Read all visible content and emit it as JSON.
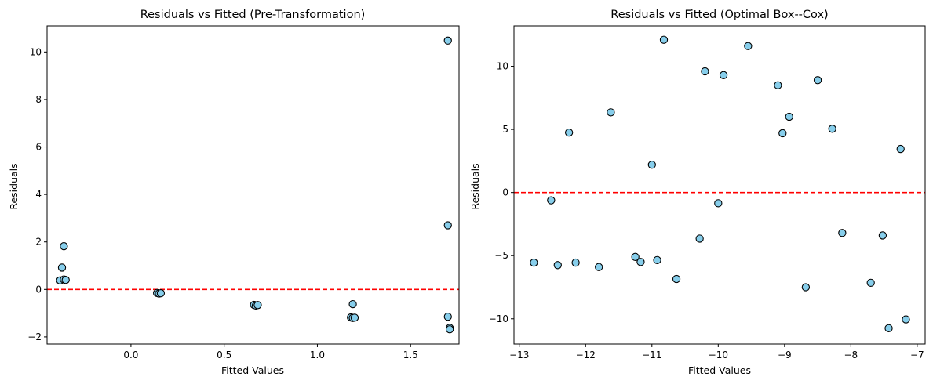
{
  "colors": {
    "point_fill": "#87ceeb",
    "point_edge": "#000000",
    "ref_line": "#ff0000"
  },
  "chart_data": [
    {
      "type": "scatter",
      "title": "Residuals vs Fitted (Pre-Transformation)",
      "xlabel": "Fitted Values",
      "ylabel": "Residuals",
      "xlim": [
        -0.45,
        1.76
      ],
      "ylim": [
        -2.3,
        11.1
      ],
      "xticks": [
        0.0,
        0.5,
        1.0,
        1.5
      ],
      "xtick_labels": [
        "0.0",
        "0.5",
        "1.0",
        "1.5"
      ],
      "yticks": [
        -2,
        0,
        2,
        4,
        6,
        8,
        10
      ],
      "ytick_labels": [
        "−2",
        "0",
        "2",
        "4",
        "6",
        "8",
        "10"
      ],
      "reference_line": {
        "y": 0,
        "style": "dashed",
        "color": "red"
      },
      "grid": false,
      "points": [
        {
          "x": -0.38,
          "y": 0.38
        },
        {
          "x": -0.36,
          "y": 0.42
        },
        {
          "x": -0.35,
          "y": 0.4
        },
        {
          "x": -0.37,
          "y": 0.92
        },
        {
          "x": -0.36,
          "y": 1.82
        },
        {
          "x": 0.14,
          "y": -0.15
        },
        {
          "x": 0.15,
          "y": -0.17
        },
        {
          "x": 0.16,
          "y": -0.16
        },
        {
          "x": 0.66,
          "y": -0.65
        },
        {
          "x": 0.67,
          "y": -0.68
        },
        {
          "x": 0.68,
          "y": -0.66
        },
        {
          "x": 1.18,
          "y": -1.18
        },
        {
          "x": 1.19,
          "y": -1.2
        },
        {
          "x": 1.2,
          "y": -1.19
        },
        {
          "x": 1.19,
          "y": -0.62
        },
        {
          "x": 1.7,
          "y": 10.48
        },
        {
          "x": 1.7,
          "y": 2.7
        },
        {
          "x": 1.7,
          "y": -1.15
        },
        {
          "x": 1.71,
          "y": -1.62
        },
        {
          "x": 1.71,
          "y": -1.68
        }
      ]
    },
    {
      "type": "scatter",
      "title": "Residuals vs Fitted (Optimal Box--Cox)",
      "xlabel": "Fitted Values",
      "ylabel": "Residuals",
      "xlim": [
        -13.08,
        -6.88
      ],
      "ylim": [
        -12.0,
        13.2
      ],
      "xticks": [
        -13,
        -12,
        -11,
        -10,
        -9,
        -8,
        -7
      ],
      "xtick_labels": [
        "−13",
        "−12",
        "−11",
        "−10",
        "−9",
        "−8",
        "−7"
      ],
      "yticks": [
        -10,
        -5,
        0,
        5,
        10
      ],
      "ytick_labels": [
        "−10",
        "−5",
        "0",
        "5",
        "10"
      ],
      "reference_line": {
        "y": 0,
        "style": "dashed",
        "color": "red"
      },
      "grid": false,
      "points": [
        {
          "x": -12.78,
          "y": -5.55
        },
        {
          "x": -12.52,
          "y": -0.62
        },
        {
          "x": -12.42,
          "y": -5.75
        },
        {
          "x": -12.25,
          "y": 4.75
        },
        {
          "x": -12.15,
          "y": -5.55
        },
        {
          "x": -11.8,
          "y": -5.9
        },
        {
          "x": -11.62,
          "y": 6.35
        },
        {
          "x": -11.25,
          "y": -5.1
        },
        {
          "x": -11.17,
          "y": -5.5
        },
        {
          "x": -11.0,
          "y": 2.2
        },
        {
          "x": -10.92,
          "y": -5.35
        },
        {
          "x": -10.82,
          "y": 12.1
        },
        {
          "x": -10.63,
          "y": -6.85
        },
        {
          "x": -10.28,
          "y": -3.65
        },
        {
          "x": -10.2,
          "y": 9.6
        },
        {
          "x": -10.0,
          "y": -0.85
        },
        {
          "x": -9.92,
          "y": 9.3
        },
        {
          "x": -9.55,
          "y": 11.6
        },
        {
          "x": -9.1,
          "y": 8.5
        },
        {
          "x": -9.03,
          "y": 4.7
        },
        {
          "x": -8.93,
          "y": 6.0
        },
        {
          "x": -8.68,
          "y": -7.5
        },
        {
          "x": -8.5,
          "y": 8.9
        },
        {
          "x": -8.28,
          "y": 5.05
        },
        {
          "x": -8.13,
          "y": -3.2
        },
        {
          "x": -7.7,
          "y": -7.15
        },
        {
          "x": -7.52,
          "y": -3.4
        },
        {
          "x": -7.43,
          "y": -10.75
        },
        {
          "x": -7.25,
          "y": 3.45
        },
        {
          "x": -7.17,
          "y": -10.05
        }
      ]
    }
  ]
}
